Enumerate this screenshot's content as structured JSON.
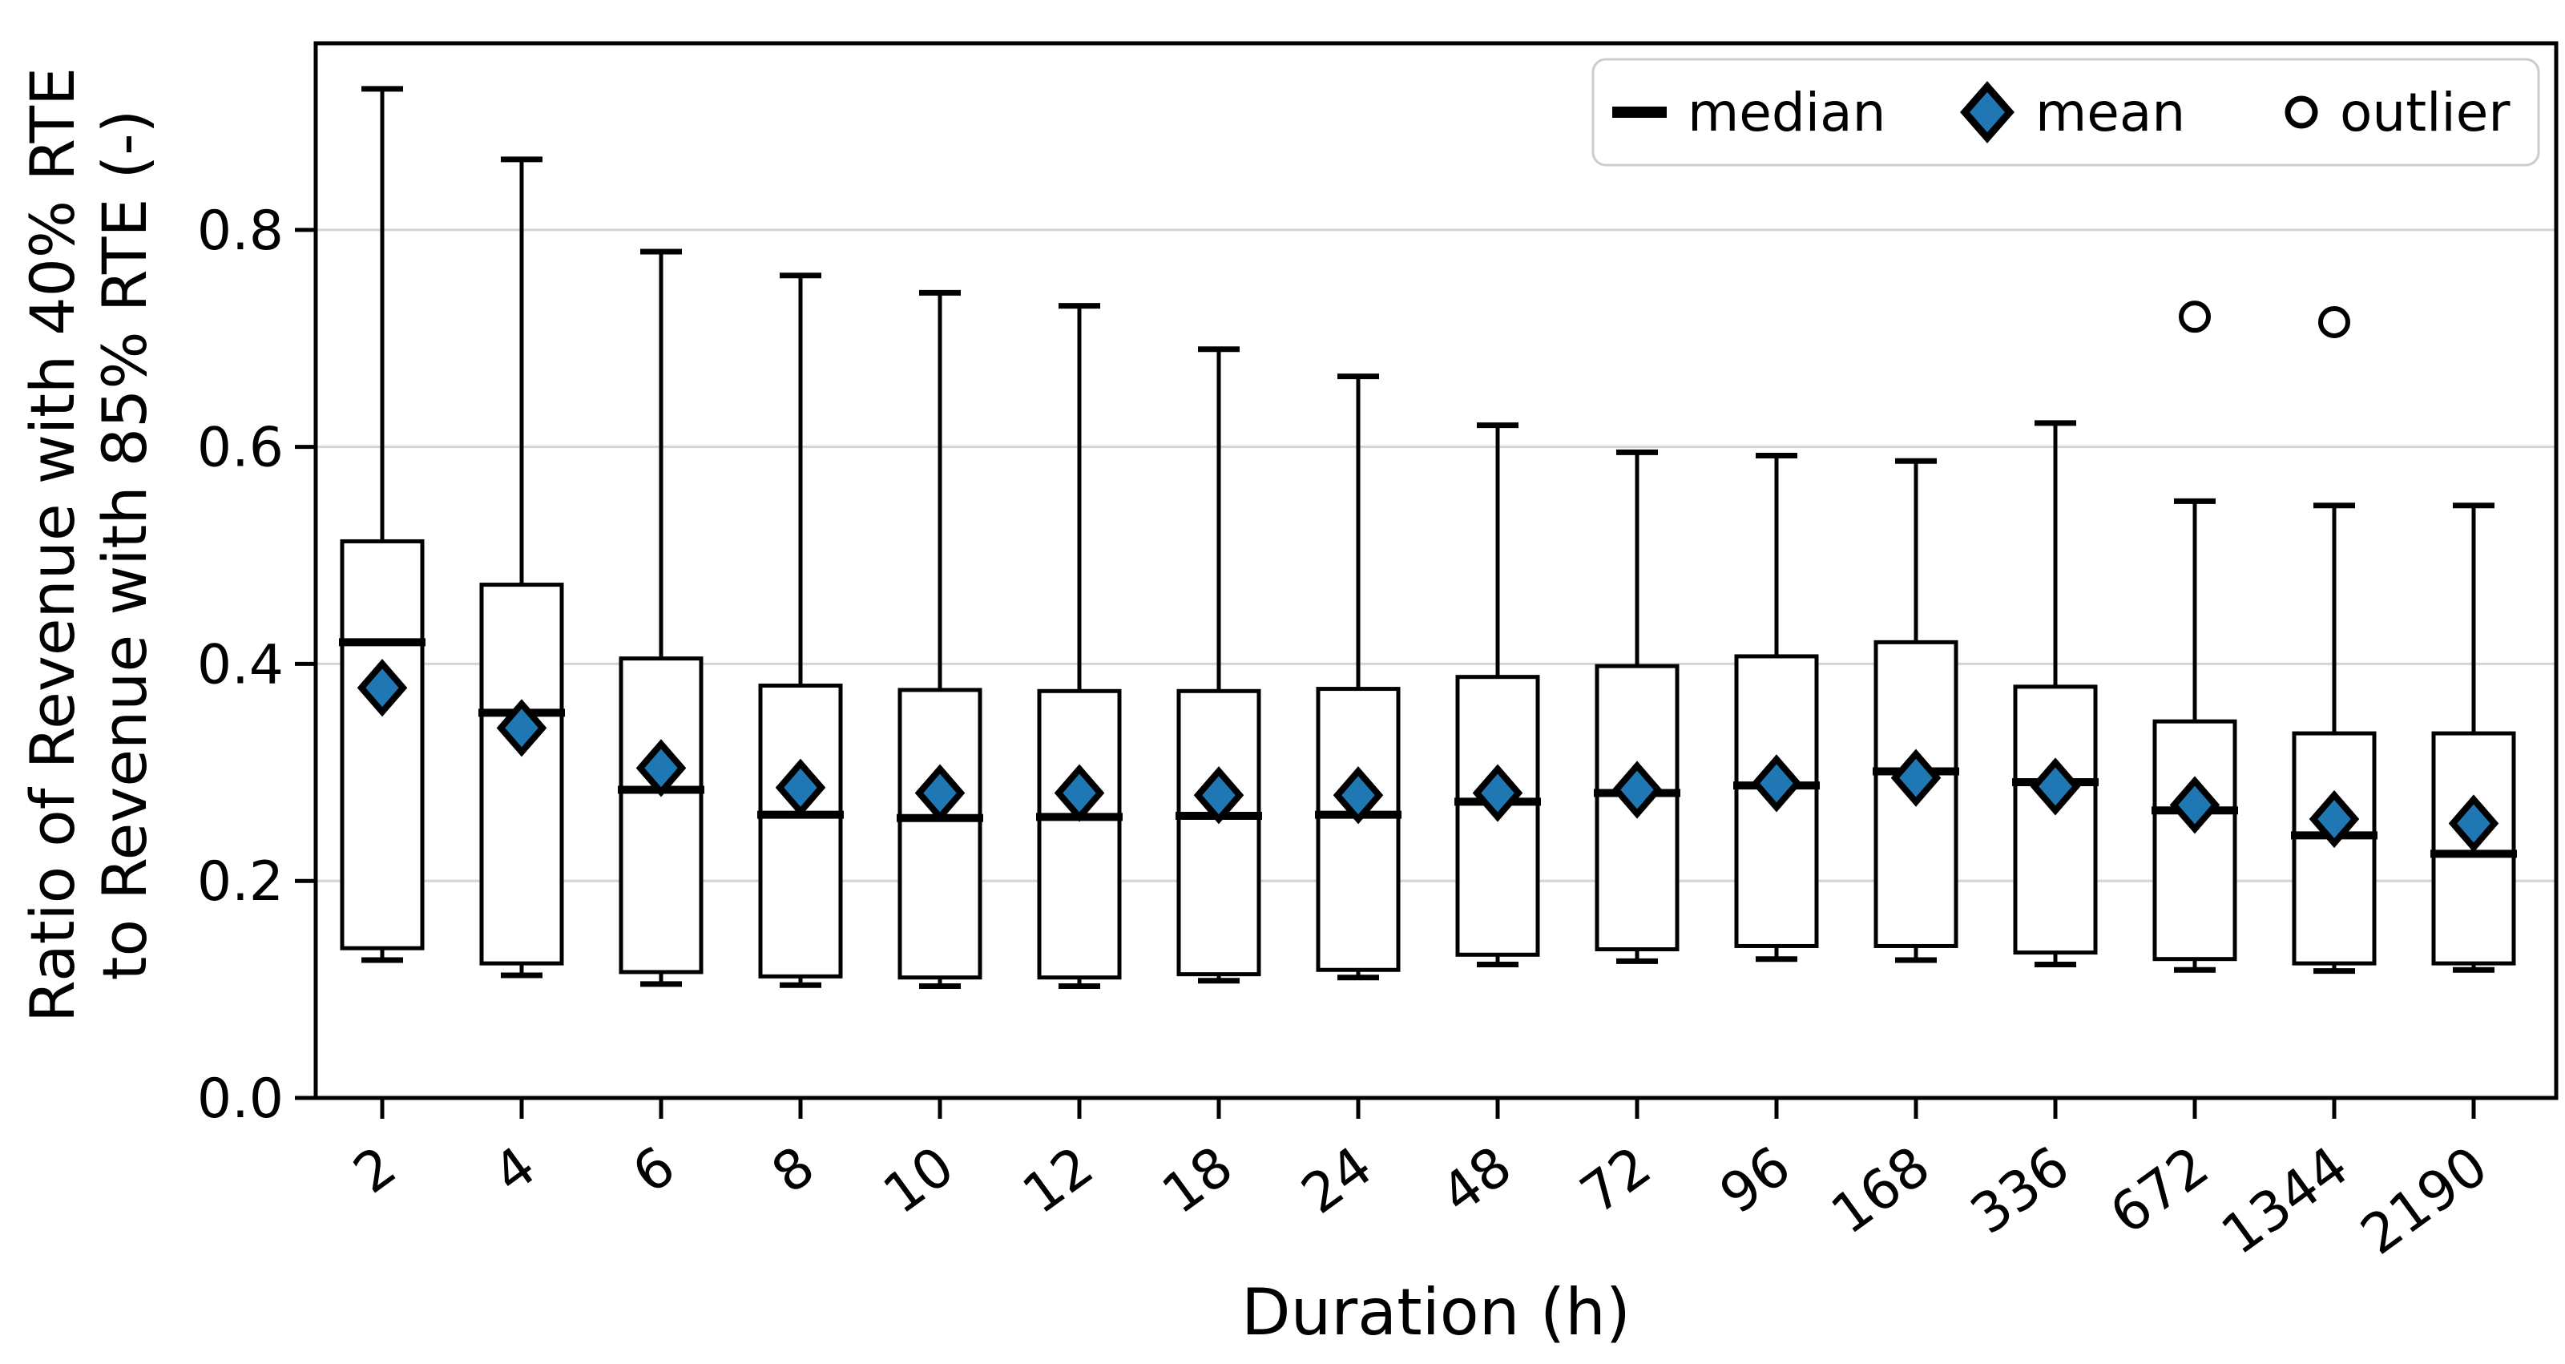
{
  "figure": {
    "background": "#ffffff"
  },
  "chart_data": {
    "type": "boxplot",
    "title": "",
    "xlabel": "Duration (h)",
    "ylabel_lines": [
      "Ratio of Revenue with 40% RTE",
      "to Revenue with 85% RTE (-)"
    ],
    "categories": [
      "2",
      "4",
      "6",
      "8",
      "10",
      "12",
      "18",
      "24",
      "48",
      "72",
      "96",
      "168",
      "336",
      "672",
      "1344",
      "2190"
    ],
    "ytick_labels": [
      "0.0",
      "0.2",
      "0.4",
      "0.6",
      "0.8"
    ],
    "ytick_values": [
      0.0,
      0.2,
      0.4,
      0.6,
      0.8
    ],
    "ylim": [
      0.0,
      0.972
    ],
    "grid": "horizontal",
    "legend": {
      "position": "upper-right",
      "entries": [
        {
          "label": "median",
          "marker": "thick-line-icon"
        },
        {
          "label": "mean",
          "marker": "diamond-icon"
        },
        {
          "label": "outlier",
          "marker": "open-circle-icon"
        }
      ]
    },
    "colors": {
      "box_line": "#000000",
      "mean_fill": "#1f77b4",
      "grid": "#d4d4d4",
      "legend_border": "#cccccc",
      "background": "#ffffff"
    },
    "boxes": [
      {
        "category": "2",
        "whisker_low": 0.127,
        "q1": 0.138,
        "median": 0.42,
        "q3": 0.513,
        "whisker_high": 0.93,
        "mean": 0.378,
        "outliers": []
      },
      {
        "category": "4",
        "whisker_low": 0.113,
        "q1": 0.124,
        "median": 0.355,
        "q3": 0.473,
        "whisker_high": 0.865,
        "mean": 0.341,
        "outliers": []
      },
      {
        "category": "6",
        "whisker_low": 0.105,
        "q1": 0.116,
        "median": 0.284,
        "q3": 0.405,
        "whisker_high": 0.78,
        "mean": 0.304,
        "outliers": []
      },
      {
        "category": "8",
        "whisker_low": 0.104,
        "q1": 0.112,
        "median": 0.261,
        "q3": 0.38,
        "whisker_high": 0.758,
        "mean": 0.286,
        "outliers": []
      },
      {
        "category": "10",
        "whisker_low": 0.103,
        "q1": 0.111,
        "median": 0.258,
        "q3": 0.376,
        "whisker_high": 0.742,
        "mean": 0.281,
        "outliers": []
      },
      {
        "category": "12",
        "whisker_low": 0.103,
        "q1": 0.111,
        "median": 0.259,
        "q3": 0.375,
        "whisker_high": 0.73,
        "mean": 0.281,
        "outliers": []
      },
      {
        "category": "18",
        "whisker_low": 0.108,
        "q1": 0.114,
        "median": 0.26,
        "q3": 0.375,
        "whisker_high": 0.69,
        "mean": 0.279,
        "outliers": []
      },
      {
        "category": "24",
        "whisker_low": 0.111,
        "q1": 0.118,
        "median": 0.261,
        "q3": 0.377,
        "whisker_high": 0.665,
        "mean": 0.279,
        "outliers": []
      },
      {
        "category": "48",
        "whisker_low": 0.123,
        "q1": 0.132,
        "median": 0.273,
        "q3": 0.388,
        "whisker_high": 0.62,
        "mean": 0.281,
        "outliers": []
      },
      {
        "category": "72",
        "whisker_low": 0.126,
        "q1": 0.137,
        "median": 0.281,
        "q3": 0.398,
        "whisker_high": 0.595,
        "mean": 0.284,
        "outliers": []
      },
      {
        "category": "96",
        "whisker_low": 0.128,
        "q1": 0.14,
        "median": 0.288,
        "q3": 0.407,
        "whisker_high": 0.592,
        "mean": 0.29,
        "outliers": []
      },
      {
        "category": "168",
        "whisker_low": 0.127,
        "q1": 0.14,
        "median": 0.301,
        "q3": 0.42,
        "whisker_high": 0.587,
        "mean": 0.295,
        "outliers": []
      },
      {
        "category": "336",
        "whisker_low": 0.123,
        "q1": 0.134,
        "median": 0.291,
        "q3": 0.379,
        "whisker_high": 0.622,
        "mean": 0.287,
        "outliers": []
      },
      {
        "category": "672",
        "whisker_low": 0.118,
        "q1": 0.128,
        "median": 0.265,
        "q3": 0.347,
        "whisker_high": 0.55,
        "mean": 0.27,
        "outliers": [
          0.72
        ]
      },
      {
        "category": "1344",
        "whisker_low": 0.117,
        "q1": 0.124,
        "median": 0.242,
        "q3": 0.336,
        "whisker_high": 0.546,
        "mean": 0.257,
        "outliers": [
          0.715
        ]
      },
      {
        "category": "2190",
        "whisker_low": 0.118,
        "q1": 0.124,
        "median": 0.225,
        "q3": 0.336,
        "whisker_high": 0.546,
        "mean": 0.253,
        "outliers": []
      }
    ]
  }
}
